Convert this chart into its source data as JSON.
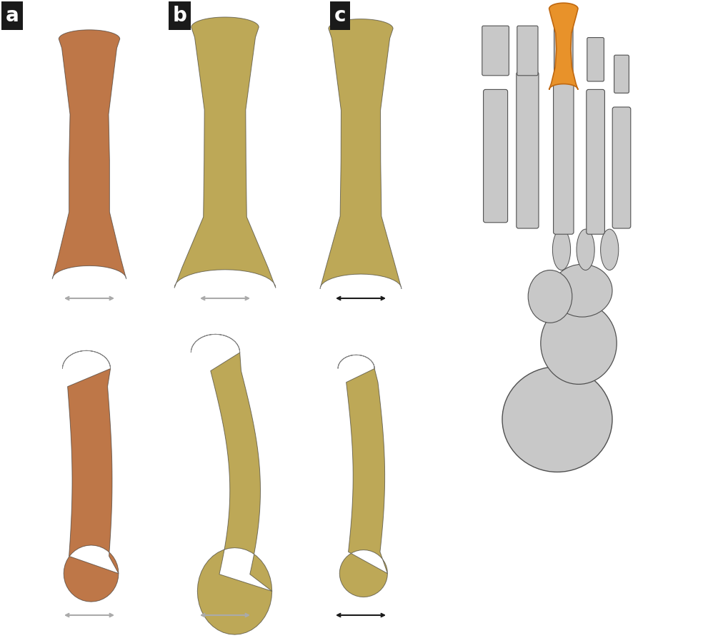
{
  "background_color": "#ffffff",
  "label_a": "a",
  "label_b": "b",
  "label_c": "c",
  "label_box_color": "#1a1a1a",
  "label_text_color": "#ffffff",
  "label_fontsize": 20,
  "bone_a_color": "#c07848",
  "bone_a_dark": "#9a5a30",
  "bone_a_light": "#d89060",
  "bone_bc_color": "#bfaa5a",
  "bone_bc_dark": "#9a8830",
  "bone_bc_light": "#d4c070",
  "foot_highlight_color": "#e8922a",
  "foot_highlight_dark": "#c06810",
  "foot_bone_color": "#c8c8c8",
  "foot_bone_light": "#e0e0e0",
  "foot_bone_dark": "#a0a0a0",
  "foot_outline_color": "#505050",
  "scale_bar_color": "#1a1a1a",
  "scale_bar_gray": "#aaaaaa",
  "figsize": [
    10.19,
    9.01
  ],
  "dpi": 100
}
